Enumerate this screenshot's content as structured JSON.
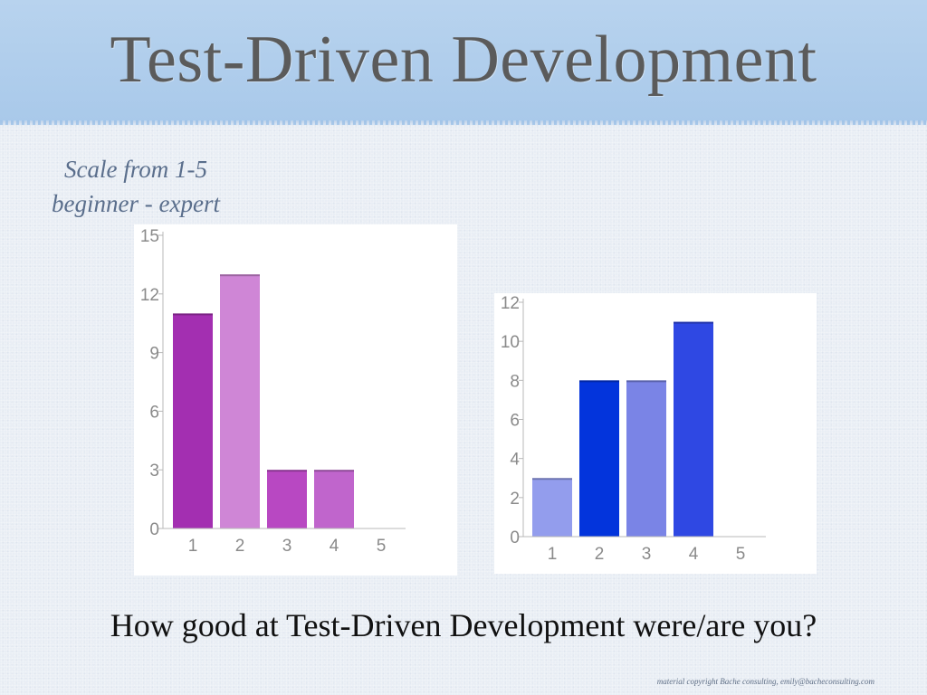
{
  "slide": {
    "title": "Test-Driven Development",
    "scale_note_line1": "Scale from 1-5",
    "scale_note_line2": "beginner - expert",
    "question": "How good at Test-Driven Development were/are you?",
    "copyright": "material copyright Bache consulting, emily@bacheconsulting.com"
  },
  "chart_data": [
    {
      "type": "bar",
      "title": "",
      "xlabel": "",
      "ylabel": "",
      "categories": [
        "1",
        "2",
        "3",
        "4",
        "5"
      ],
      "values": [
        11,
        13,
        3,
        3,
        0
      ],
      "ylim": [
        0,
        15
      ],
      "yticks": [
        0,
        3,
        6,
        9,
        12,
        15
      ],
      "grid": false,
      "colors": [
        "#a32fb1",
        "#cf86d6",
        "#b848c2",
        "#c065cc",
        "#cccccc"
      ]
    },
    {
      "type": "bar",
      "title": "",
      "xlabel": "",
      "ylabel": "",
      "categories": [
        "1",
        "2",
        "3",
        "4",
        "5"
      ],
      "values": [
        3,
        8,
        8,
        11,
        0
      ],
      "ylim": [
        0,
        12
      ],
      "yticks": [
        0,
        2,
        4,
        6,
        8,
        10,
        12
      ],
      "grid": false,
      "colors": [
        "#939ded",
        "#0334dc",
        "#7a84e6",
        "#2f48e3",
        "#cccccc"
      ]
    }
  ]
}
